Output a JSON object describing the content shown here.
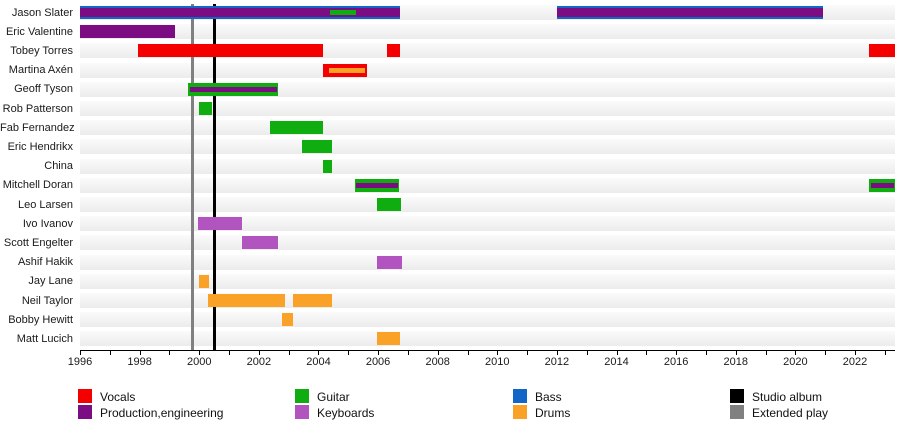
{
  "chart_data": {
    "type": "timeline-gantt",
    "title": "",
    "x_axis": {
      "min_year": 1996,
      "max_year": 2023.35,
      "minor_tick_every": 1,
      "labeled_ticks": [
        1996,
        1998,
        2000,
        2002,
        2004,
        2006,
        2008,
        2010,
        2012,
        2014,
        2016,
        2018,
        2020,
        2022
      ]
    },
    "roles": {
      "vocals": "#f50000",
      "production": "#7b0c82",
      "guitar": "#10ad10",
      "keyboards": "#b154bf",
      "bass": "#1166c6",
      "drums": "#f9a227"
    },
    "event_lines": [
      {
        "name": "Extended play",
        "year": 1999.79,
        "color": "#808080",
        "width": 3
      },
      {
        "name": "Studio album",
        "year": 2000.52,
        "color": "#000000",
        "width": 3
      }
    ],
    "members": [
      {
        "name": "Jason Slater",
        "bars": [
          {
            "start": 1996.0,
            "end": 2006.72,
            "role": "bass",
            "size": "full"
          },
          {
            "start": 1996.0,
            "end": 2006.72,
            "role": "production",
            "size": "mid"
          },
          {
            "start": 2004.38,
            "end": 2005.25,
            "role": "guitar",
            "size": "thin"
          },
          {
            "start": 2012.0,
            "end": 2020.92,
            "role": "bass",
            "size": "full"
          },
          {
            "start": 2012.0,
            "end": 2020.92,
            "role": "production",
            "size": "mid"
          }
        ]
      },
      {
        "name": "Eric Valentine",
        "bars": [
          {
            "start": 1996.0,
            "end": 1999.2,
            "role": "production",
            "size": "full"
          }
        ]
      },
      {
        "name": "Tobey Torres",
        "bars": [
          {
            "start": 1997.95,
            "end": 2004.14,
            "role": "vocals",
            "size": "full"
          },
          {
            "start": 2006.3,
            "end": 2006.72,
            "role": "vocals",
            "size": "full"
          },
          {
            "start": 2022.46,
            "end": 2023.33,
            "role": "vocals",
            "size": "full"
          }
        ]
      },
      {
        "name": "Martina Axén",
        "bars": [
          {
            "start": 2004.14,
            "end": 2005.62,
            "role": "vocals",
            "size": "full"
          },
          {
            "start": 2004.35,
            "end": 2005.55,
            "role": "drums",
            "size": "thin"
          }
        ]
      },
      {
        "name": "Geoff Tyson",
        "bars": [
          {
            "start": 1999.62,
            "end": 2002.63,
            "role": "guitar",
            "size": "full"
          },
          {
            "start": 1999.69,
            "end": 2002.6,
            "role": "production",
            "size": "thin"
          }
        ]
      },
      {
        "name": "Rob Patterson",
        "bars": [
          {
            "start": 1999.98,
            "end": 2000.42,
            "role": "guitar",
            "size": "full"
          }
        ]
      },
      {
        "name": "Fab Fernandez",
        "bars": [
          {
            "start": 2002.37,
            "end": 2004.14,
            "role": "guitar",
            "size": "full"
          }
        ]
      },
      {
        "name": "Eric Hendrikx",
        "bars": [
          {
            "start": 2003.44,
            "end": 2004.47,
            "role": "guitar",
            "size": "full"
          }
        ]
      },
      {
        "name": "China",
        "bars": [
          {
            "start": 2004.14,
            "end": 2004.47,
            "role": "guitar",
            "size": "full"
          }
        ]
      },
      {
        "name": "Mitchell Doran",
        "bars": [
          {
            "start": 2005.22,
            "end": 2006.7,
            "role": "guitar",
            "size": "full"
          },
          {
            "start": 2005.27,
            "end": 2006.66,
            "role": "production",
            "size": "thin"
          },
          {
            "start": 2022.46,
            "end": 2023.33,
            "role": "guitar",
            "size": "full"
          },
          {
            "start": 2022.52,
            "end": 2023.3,
            "role": "production",
            "size": "thin"
          }
        ]
      },
      {
        "name": "Leo Larsen",
        "bars": [
          {
            "start": 2005.98,
            "end": 2006.77,
            "role": "guitar",
            "size": "full"
          }
        ]
      },
      {
        "name": "Ivo Ivanov",
        "bars": [
          {
            "start": 1999.96,
            "end": 2001.43,
            "role": "keyboards",
            "size": "full"
          }
        ]
      },
      {
        "name": "Scott Engelter",
        "bars": [
          {
            "start": 2001.43,
            "end": 2002.63,
            "role": "keyboards",
            "size": "full"
          }
        ]
      },
      {
        "name": "Ashif Hakik",
        "bars": [
          {
            "start": 2005.98,
            "end": 2006.8,
            "role": "keyboards",
            "size": "full"
          }
        ]
      },
      {
        "name": "Jay Lane",
        "bars": [
          {
            "start": 1999.98,
            "end": 2000.33,
            "role": "drums",
            "size": "full"
          }
        ]
      },
      {
        "name": "Neil Taylor",
        "bars": [
          {
            "start": 2000.29,
            "end": 2002.87,
            "role": "drums",
            "size": "full"
          },
          {
            "start": 2003.14,
            "end": 2004.47,
            "role": "drums",
            "size": "full"
          }
        ]
      },
      {
        "name": "Bobby Hewitt",
        "bars": [
          {
            "start": 2002.77,
            "end": 2003.14,
            "role": "drums",
            "size": "full"
          }
        ]
      },
      {
        "name": "Matt Lucich",
        "bars": [
          {
            "start": 2005.96,
            "end": 2006.72,
            "role": "drums",
            "size": "full"
          }
        ]
      }
    ],
    "legend": {
      "items": [
        {
          "label": "Vocals",
          "color_key": "vocals",
          "col": 0,
          "row": 0
        },
        {
          "label": "Production,engineering",
          "color_key": "production",
          "col": 0,
          "row": 1
        },
        {
          "label": "Guitar",
          "color_key": "guitar",
          "col": 1,
          "row": 0
        },
        {
          "label": "Keyboards",
          "color_key": "keyboards",
          "col": 1,
          "row": 1
        },
        {
          "label": "Bass",
          "color_key": "bass",
          "col": 2,
          "row": 0
        },
        {
          "label": "Drums",
          "color_key": "drums",
          "col": 2,
          "row": 1
        },
        {
          "label": "Studio album",
          "color": "#000000",
          "col": 3,
          "row": 0
        },
        {
          "label": "Extended play",
          "color": "#808080",
          "col": 3,
          "row": 1
        }
      ]
    }
  }
}
